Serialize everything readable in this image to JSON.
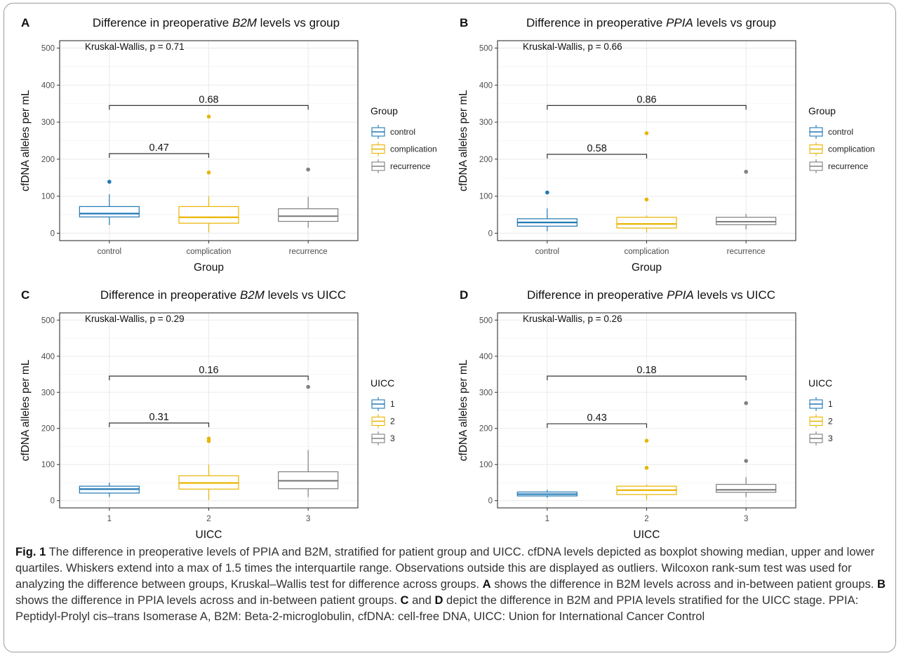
{
  "colors": {
    "control": "#1f78b4",
    "complication": "#e9b400",
    "recurrence": "#808080",
    "grid": "#ebebeb"
  },
  "legend_markers": [
    "control",
    "complication",
    "recurrence"
  ],
  "panels": [
    {
      "letter": "A",
      "title_before": "Difference in preoperative ",
      "title_gene": "B2M",
      "title_after": " levels vs group",
      "xlabel": "Group",
      "ylabel": "cfDNA alleles per mL",
      "kw": "Kruskal-Wallis, p = 0.71",
      "legend_title": "Group",
      "legend_items": [
        "control",
        "complication",
        "recurrence"
      ],
      "comparisons": [
        {
          "label": "0.47"
        },
        {
          "label": "0.68"
        }
      ]
    },
    {
      "letter": "B",
      "title_before": "Difference in preoperative ",
      "title_gene": "PPIA",
      "title_after": " levels vs group",
      "xlabel": "Group",
      "ylabel": "cfDNA alleles per mL",
      "kw": "Kruskal-Wallis, p = 0.66",
      "legend_title": "Group",
      "legend_items": [
        "control",
        "complication",
        "recurrence"
      ],
      "comparisons": [
        {
          "label": "0.58"
        },
        {
          "label": "0.86"
        }
      ]
    },
    {
      "letter": "C",
      "title_before": "Difference in preoperative ",
      "title_gene": "B2M",
      "title_after": " levels vs UICC",
      "xlabel": "UICC",
      "ylabel": "cfDNA alleles per mL",
      "kw": "Kruskal-Wallis, p = 0.29",
      "legend_title": "UICC",
      "legend_items": [
        "1",
        "2",
        "3"
      ],
      "comparisons": [
        {
          "label": "0.31"
        },
        {
          "label": "0.16"
        }
      ]
    },
    {
      "letter": "D",
      "title_before": "Difference in preoperative ",
      "title_gene": "PPIA",
      "title_after": " levels vs UICC",
      "xlabel": "UICC",
      "ylabel": "cfDNA alleles per mL",
      "kw": "Kruskal-Wallis, p = 0.26",
      "legend_title": "UICC",
      "legend_items": [
        "1",
        "2",
        "3"
      ],
      "comparisons": [
        {
          "label": "0.43"
        },
        {
          "label": "0.18"
        }
      ]
    }
  ],
  "caption": {
    "label": "Fig. 1",
    "p1": "  The difference in preoperative levels of PPIA and B2M, stratified for patient group and UICC. cfDNA levels depicted as boxplot showing median, upper and lower quartiles. Whiskers extend into a max of 1.5 times the interquartile range. Observations outside this are displayed as outliers. Wilcoxon rank-sum test was used for analyzing the difference between groups, Kruskal–Wallis test for difference across groups. ",
    "refA": "A",
    "p2": " shows the difference in B2M levels across and in-between patient groups. ",
    "refB": "B",
    "p3": " shows the difference in PPIA levels across and in-between patient groups. ",
    "refC": "C",
    "p4": " and ",
    "refD": "D",
    "p5": " depict the difference in B2M and PPIA levels stratified for the UICC stage. PPIA: Peptidyl-Prolyl cis–trans Isomerase A, B2M: Beta-2-microglobulin, cfDNA: cell-free DNA, UICC: Union for International Cancer Control"
  },
  "chart_data": [
    {
      "type": "boxplot",
      "panel": "A",
      "categories": [
        "control",
        "complication",
        "recurrence"
      ],
      "yticks": [
        0,
        100,
        200,
        300,
        400,
        500
      ],
      "ylim": [
        -20,
        520
      ],
      "boxes": [
        {
          "q1": 44,
          "median": 53,
          "q3": 72,
          "whisker_low": 22,
          "whisker_high": 105,
          "outliers": [
            139
          ]
        },
        {
          "q1": 27,
          "median": 43,
          "q3": 72,
          "whisker_low": 2,
          "whisker_high": 100,
          "outliers": [
            164,
            315
          ]
        },
        {
          "q1": 32,
          "median": 46,
          "q3": 66,
          "whisker_low": 15,
          "whisker_high": 98,
          "outliers": [
            172
          ]
        }
      ],
      "comparisons": [
        {
          "from": 0,
          "to": 1,
          "y": 215,
          "p": 0.47
        },
        {
          "from": 0,
          "to": 2,
          "y": 345,
          "p": 0.68
        }
      ],
      "grid": true,
      "legend_position": "right"
    },
    {
      "type": "boxplot",
      "panel": "B",
      "categories": [
        "control",
        "complication",
        "recurrence"
      ],
      "yticks": [
        0,
        100,
        200,
        300,
        400,
        500
      ],
      "ylim": [
        -20,
        520
      ],
      "boxes": [
        {
          "q1": 19,
          "median": 29,
          "q3": 39,
          "whisker_low": 5,
          "whisker_high": 67,
          "outliers": [
            110
          ]
        },
        {
          "q1": 14,
          "median": 25,
          "q3": 43,
          "whisker_low": 2,
          "whisker_high": 48,
          "outliers": [
            91,
            270
          ]
        },
        {
          "q1": 23,
          "median": 31,
          "q3": 43,
          "whisker_low": 10,
          "whisker_high": 52,
          "outliers": [
            166
          ]
        }
      ],
      "comparisons": [
        {
          "from": 0,
          "to": 1,
          "y": 213,
          "p": 0.58
        },
        {
          "from": 0,
          "to": 2,
          "y": 345,
          "p": 0.86
        }
      ],
      "grid": true,
      "legend_position": "right"
    },
    {
      "type": "boxplot",
      "panel": "C",
      "categories": [
        "1",
        "2",
        "3"
      ],
      "yticks": [
        0,
        100,
        200,
        300,
        400,
        500
      ],
      "ylim": [
        -20,
        520
      ],
      "boxes": [
        {
          "q1": 21,
          "median": 32,
          "q3": 40,
          "whisker_low": 10,
          "whisker_high": 50,
          "outliers": []
        },
        {
          "q1": 32,
          "median": 49,
          "q3": 69,
          "whisker_low": 2,
          "whisker_high": 100,
          "outliers": [
            165,
            172
          ]
        },
        {
          "q1": 33,
          "median": 55,
          "q3": 80,
          "whisker_low": 10,
          "whisker_high": 140,
          "outliers": [
            315
          ]
        }
      ],
      "comparisons": [
        {
          "from": 0,
          "to": 1,
          "y": 215,
          "p": 0.31
        },
        {
          "from": 0,
          "to": 2,
          "y": 345,
          "p": 0.16
        }
      ],
      "grid": true,
      "legend_position": "right"
    },
    {
      "type": "boxplot",
      "panel": "D",
      "categories": [
        "1",
        "2",
        "3"
      ],
      "yticks": [
        0,
        100,
        200,
        300,
        400,
        500
      ],
      "ylim": [
        -20,
        520
      ],
      "boxes": [
        {
          "q1": 13,
          "median": 18,
          "q3": 24,
          "whisker_low": 8,
          "whisker_high": 30,
          "outliers": []
        },
        {
          "q1": 17,
          "median": 29,
          "q3": 40,
          "whisker_low": 2,
          "whisker_high": 45,
          "outliers": [
            91,
            166
          ]
        },
        {
          "q1": 23,
          "median": 30,
          "q3": 45,
          "whisker_low": 10,
          "whisker_high": 65,
          "outliers": [
            110,
            270
          ]
        }
      ],
      "comparisons": [
        {
          "from": 0,
          "to": 1,
          "y": 213,
          "p": 0.43
        },
        {
          "from": 0,
          "to": 2,
          "y": 345,
          "p": 0.18
        }
      ],
      "grid": true,
      "legend_position": "right"
    }
  ]
}
